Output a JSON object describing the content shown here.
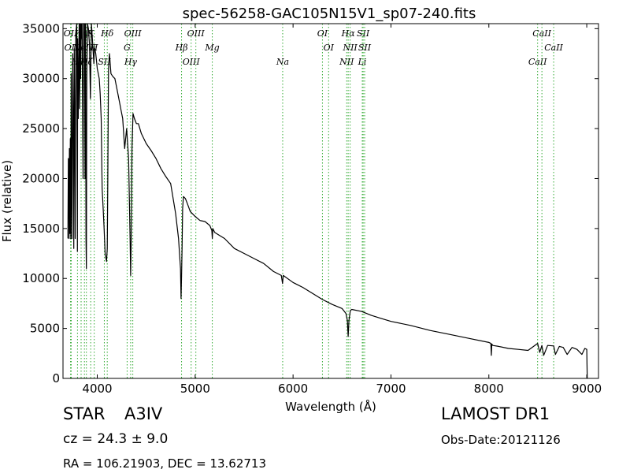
{
  "chart_data": {
    "type": "line",
    "title": "spec-56258-GAC105N15V1_sp07-240.fits",
    "xlabel": "Wavelength (Å)",
    "ylabel": "Flux (relative)",
    "xlim": [
      3650,
      9120
    ],
    "ylim": [
      0,
      35500
    ],
    "xticks": [
      4000,
      5000,
      6000,
      7000,
      8000,
      9000
    ],
    "yticks": [
      0,
      5000,
      10000,
      15000,
      20000,
      25000,
      30000,
      35000
    ],
    "grid": false,
    "line_color": "#000000",
    "marker_color": "#33aa33",
    "series": [
      {
        "x": [
          3700,
          3705,
          3708,
          3712,
          3715,
          3720,
          3725,
          3730,
          3734,
          3738,
          3742,
          3750,
          3755,
          3760,
          3765,
          3770,
          3775,
          3780,
          3790,
          3797,
          3800,
          3806,
          3815,
          3820,
          3825,
          3830,
          3835,
          3840,
          3845,
          3850,
          3855,
          3860,
          3870,
          3875,
          3880,
          3885,
          3889,
          3893,
          3900,
          3910,
          3920,
          3930,
          3940,
          3950,
          3965,
          3970,
          3975,
          3985,
          3995,
          4000,
          4010,
          4020,
          4030,
          4040,
          4050,
          4060,
          4070,
          4080,
          4095,
          4102,
          4108,
          4115,
          4125,
          4140,
          4160,
          4180,
          4200,
          4220,
          4240,
          4260,
          4280,
          4300,
          4320,
          4335,
          4341,
          4347,
          4355,
          4365,
          4380,
          4400,
          4420,
          4450,
          4500,
          4550,
          4600,
          4650,
          4700,
          4750,
          4800,
          4830,
          4850,
          4856,
          4861,
          4866,
          4872,
          4880,
          4900,
          4920,
          4950,
          5000,
          5050,
          5100,
          5150,
          5170,
          5175,
          5180,
          5200,
          5250,
          5300,
          5400,
          5500,
          5600,
          5700,
          5800,
          5880,
          5893,
          5900,
          6000,
          6100,
          6200,
          6300,
          6400,
          6500,
          6540,
          6555,
          6563,
          6571,
          6585,
          6600,
          6700,
          6800,
          6900,
          7000,
          7200,
          7400,
          7600,
          7800,
          8000,
          8020,
          8025,
          8030,
          8040,
          8100,
          8200,
          8300,
          8400,
          8498,
          8520,
          8542,
          8560,
          8600,
          8662,
          8680,
          8720,
          8760,
          8800,
          8850,
          8900,
          8950,
          8980,
          9000,
          9005
        ],
        "y": [
          14000,
          22000,
          21000,
          14000,
          23000,
          14500,
          24000,
          14000,
          30500,
          21000,
          14000,
          32500,
          25000,
          13000,
          33000,
          26000,
          14000,
          34500,
          35500,
          12700,
          34000,
          26000,
          35500,
          27000,
          35500,
          30000,
          35500,
          34000,
          35500,
          27000,
          20000,
          35500,
          35500,
          20000,
          35500,
          14000,
          11000,
          30000,
          35500,
          35000,
          33500,
          28000,
          35500,
          34000,
          31500,
          33000,
          33000,
          32500,
          31500,
          31000,
          30500,
          30000,
          28500,
          26000,
          19000,
          17000,
          15000,
          12500,
          11700,
          13000,
          20000,
          31000,
          32500,
          30500,
          30200,
          30000,
          29000,
          28000,
          27000,
          26000,
          23000,
          25000,
          22000,
          14000,
          10300,
          14000,
          23000,
          26500,
          26000,
          25500,
          25500,
          24500,
          23500,
          22800,
          22000,
          21000,
          20200,
          19500,
          16500,
          14000,
          11000,
          8000,
          10000,
          13000,
          17000,
          18200,
          18000,
          17500,
          16700,
          16200,
          15800,
          15700,
          15300,
          14800,
          14000,
          15000,
          14600,
          14300,
          14000,
          13000,
          12500,
          12000,
          11500,
          10700,
          10300,
          9500,
          10300,
          9600,
          9100,
          8500,
          7900,
          7400,
          7000,
          6500,
          5800,
          4200,
          5800,
          6800,
          6900,
          6700,
          6300,
          6000,
          5700,
          5300,
          4800,
          4400,
          4000,
          3600,
          3500,
          2300,
          3450,
          3300,
          3200,
          3000,
          2900,
          2800,
          3500,
          2600,
          3300,
          2300,
          3300,
          3250,
          2400,
          3200,
          3100,
          2400,
          3100,
          2900,
          2400,
          3000,
          2900,
          0
        ],
        "markers": [
          {
            "x": 3727,
            "labels": [
              "OII"
            ]
          },
          {
            "x": 3734,
            "labels": [
              "OII"
            ]
          },
          {
            "x": 3798,
            "labels": [
              "Hθ"
            ]
          },
          {
            "x": 3835,
            "labels": [
              "Hη"
            ]
          },
          {
            "x": 3869,
            "labels": [
              "NeIII"
            ]
          },
          {
            "x": 3889,
            "labels": [
              "Hζ"
            ]
          },
          {
            "x": 3933,
            "labels": [
              "K"
            ]
          },
          {
            "x": 3969,
            "labels": [
              "H"
            ]
          },
          {
            "x": 4072,
            "labels": [
              "SII"
            ]
          },
          {
            "x": 4102,
            "labels": [
              "Hδ"
            ]
          },
          {
            "x": 4305,
            "labels": [
              "G"
            ]
          },
          {
            "x": 4341,
            "labels": [
              "Hγ"
            ]
          },
          {
            "x": 4363,
            "labels": [
              "OIII"
            ]
          },
          {
            "x": 4861,
            "labels": [
              "Hβ"
            ]
          },
          {
            "x": 4959,
            "labels": [
              "OIII"
            ]
          },
          {
            "x": 5007,
            "labels": [
              "OIII"
            ]
          },
          {
            "x": 5175,
            "labels": [
              "Mg"
            ]
          },
          {
            "x": 5894,
            "labels": [
              "Na"
            ]
          },
          {
            "x": 6300,
            "labels": [
              "OI"
            ]
          },
          {
            "x": 6363,
            "labels": [
              "OI"
            ]
          },
          {
            "x": 6548,
            "labels": [
              "NII"
            ]
          },
          {
            "x": 6563,
            "labels": [
              "Hα"
            ]
          },
          {
            "x": 6583,
            "labels": [
              "NII"
            ]
          },
          {
            "x": 6707,
            "labels": [
              "Li"
            ]
          },
          {
            "x": 6716,
            "labels": [
              "SII"
            ]
          },
          {
            "x": 6731,
            "labels": [
              "SII"
            ]
          },
          {
            "x": 8498,
            "labels": [
              "CaII"
            ]
          },
          {
            "x": 8542,
            "labels": [
              "CaII"
            ]
          },
          {
            "x": 8662,
            "labels": [
              "CaII"
            ]
          }
        ]
      }
    ]
  },
  "info": {
    "object_class": "STAR",
    "subclass": "A3IV",
    "survey": "LAMOST DR1",
    "cz": "cz = 24.3  ± 9.0",
    "obs_date": "Obs-Date:20121126",
    "radec": "RA = 106.21903, DEC = 13.62713"
  }
}
